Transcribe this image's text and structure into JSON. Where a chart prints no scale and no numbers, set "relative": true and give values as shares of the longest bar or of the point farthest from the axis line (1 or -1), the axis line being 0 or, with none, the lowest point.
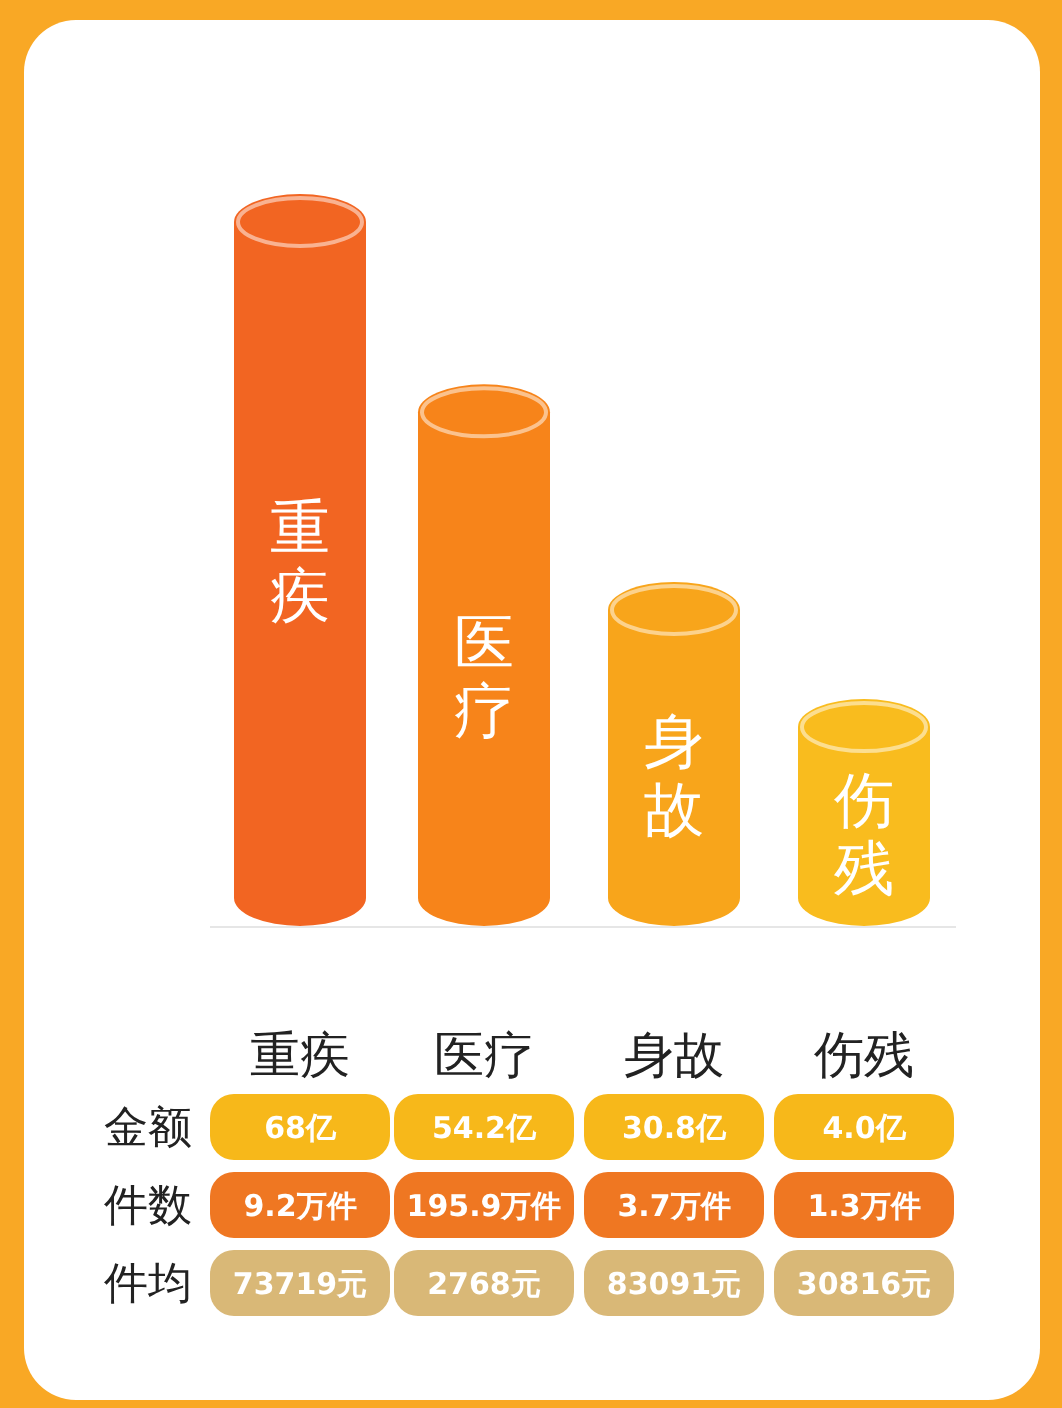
{
  "chart_data": [
    {
      "type": "bar",
      "relative": true,
      "categories": [
        "重疾",
        "医疗",
        "身故",
        "伤残"
      ],
      "values": [
        1,
        0.74,
        0.47,
        0.31
      ],
      "colors": [
        "#f26522",
        "#f7841a",
        "#f8a51b",
        "#f9bc1e"
      ]
    },
    {
      "type": "other",
      "categories": [
        "重疾",
        "医疗",
        "身故",
        "伤残"
      ],
      "y_categories": [
        "金额",
        "件数",
        "件均"
      ],
      "colors": [
        "#f7b81a",
        "#ef7722",
        "#d9b877"
      ],
      "cell_labels": [
        [
          "68亿",
          "54.2亿",
          "30.8亿",
          "4.0亿"
        ],
        [
          "9.2万件",
          "195.9万件",
          "3.7万件",
          "1.3万件"
        ],
        [
          "73719元",
          "2768元",
          "83091元",
          "30816元"
        ]
      ]
    }
  ]
}
